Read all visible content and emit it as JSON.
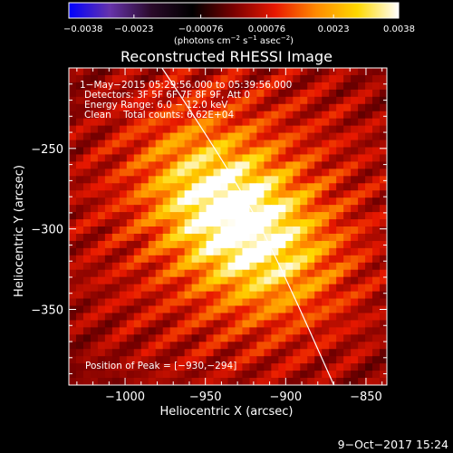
{
  "chart_data": {
    "type": "heatmap",
    "title": "Reconstructed RHESSI Image",
    "xlabel": "Heliocentric X (arcsec)",
    "ylabel": "Heliocentric Y (arcsec)",
    "xlim": [
      -1035,
      -837
    ],
    "ylim": [
      -397,
      -200
    ],
    "x_ticks": [
      -1000,
      -950,
      -900,
      -850
    ],
    "x_tick_labels": [
      "−1000",
      "−950",
      "−900",
      "−850"
    ],
    "y_ticks": [
      -250,
      -300,
      -350
    ],
    "y_tick_labels": [
      "−250",
      "−300",
      "−350"
    ],
    "colorbar": {
      "min": -0.0038,
      "max": 0.0038,
      "colormap": "blue-purple-black-red-orange-yellow-white",
      "ticks": [
        -0.0038,
        -0.0023,
        -0.00076,
        0.00076,
        0.0023,
        0.0038
      ],
      "tick_labels": [
        "−0.0038",
        "−0.0023",
        "−0.00076",
        "0.00076",
        "0.0023",
        "0.0038"
      ],
      "unit_parts": [
        "(photons cm",
        "−2",
        " s",
        "−1",
        " asec",
        "−2",
        ")"
      ]
    },
    "peak": {
      "x": -930,
      "y": -294,
      "value": 0.0038
    },
    "limb": {
      "description": "solar limb arc",
      "points": [
        [
          -977,
          -200
        ],
        [
          -930,
          -270
        ],
        [
          -900,
          -330
        ],
        [
          -870,
          -397
        ]
      ]
    },
    "annotations": [
      "1−May−2015 05:29:56.000 to 05:39:56.000",
      "Detectors: 3F 5F 6F 7F 8F 9F, Att 0",
      "Energy Range: 6.0 − 12.0 keV",
      "Clean    Total counts: 6.62E+04"
    ],
    "peak_label": "Position of Peak = [−930,−294]",
    "grid": false
  },
  "footer": {
    "date": "9−Oct−2017 15:24"
  },
  "colors": {
    "background": "#000000",
    "text": "#ffffff",
    "limb": "#ffffff",
    "colormap_stops": [
      "#0000ff",
      "#6633aa",
      "#2a0a2a",
      "#000000",
      "#7a0000",
      "#e81800",
      "#ff8a00",
      "#ffd800",
      "#ffffff"
    ]
  }
}
